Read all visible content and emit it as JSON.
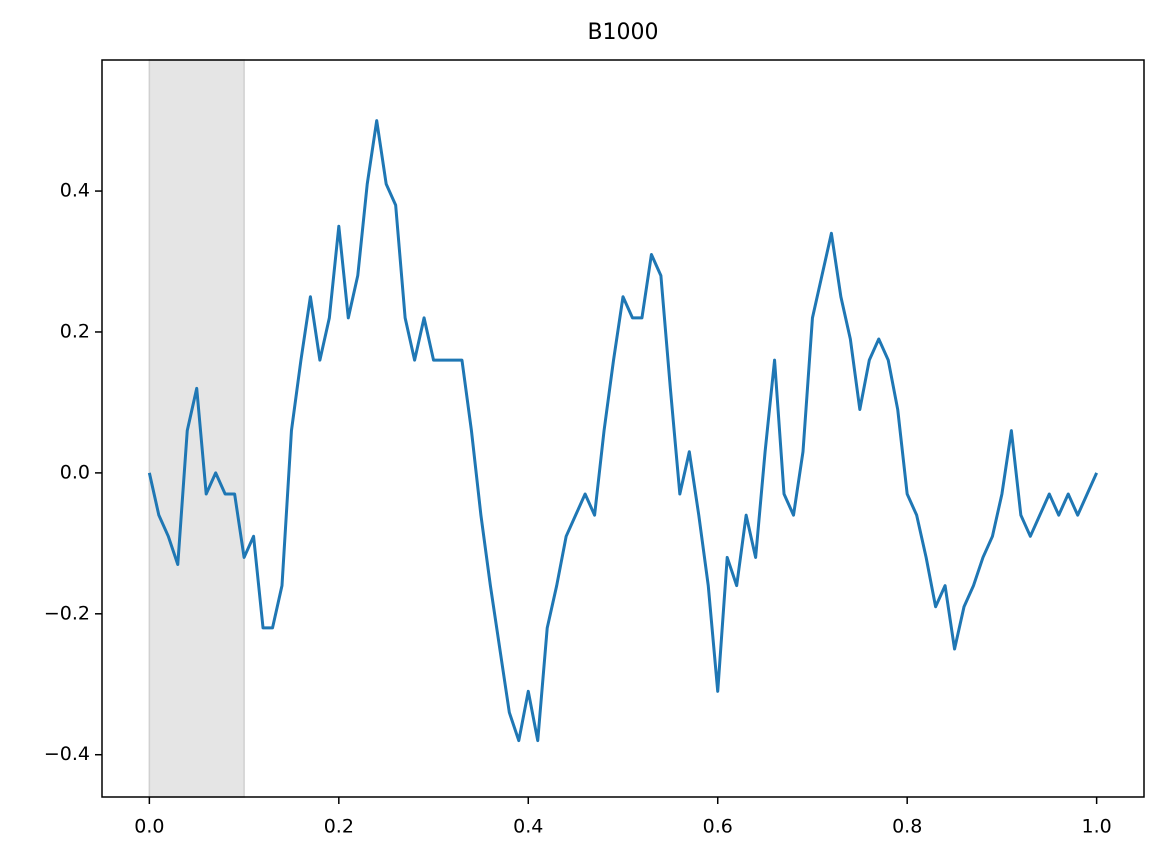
{
  "chart_data": {
    "type": "line",
    "title": "B1000",
    "x": [
      0,
      0.01,
      0.02,
      0.03,
      0.04,
      0.05,
      0.06,
      0.07,
      0.08,
      0.09,
      0.1,
      0.11,
      0.12,
      0.13,
      0.14,
      0.15,
      0.16,
      0.17,
      0.18,
      0.19,
      0.2,
      0.21,
      0.22,
      0.23,
      0.24,
      0.25,
      0.26,
      0.27,
      0.28,
      0.29,
      0.3,
      0.31,
      0.32,
      0.33,
      0.34,
      0.35,
      0.36,
      0.37,
      0.38,
      0.39,
      0.4,
      0.41,
      0.42,
      0.43,
      0.44,
      0.45,
      0.46,
      0.47,
      0.48,
      0.49,
      0.5,
      0.51,
      0.52,
      0.53,
      0.54,
      0.55,
      0.56,
      0.57,
      0.58,
      0.59,
      0.6,
      0.61,
      0.62,
      0.63,
      0.64,
      0.65,
      0.66,
      0.67,
      0.68,
      0.69,
      0.7,
      0.71,
      0.72,
      0.73,
      0.74,
      0.75,
      0.76,
      0.77,
      0.78,
      0.79,
      0.8,
      0.81,
      0.82,
      0.83,
      0.84,
      0.85,
      0.86,
      0.87,
      0.88,
      0.89,
      0.9,
      0.91,
      0.92,
      0.93,
      0.94,
      0.95,
      0.96,
      0.97,
      0.98,
      0.99,
      1.0
    ],
    "series": [
      {
        "color": "#1f77b4",
        "values": [
          0.0,
          -0.06,
          -0.09,
          -0.13,
          0.06,
          0.12,
          -0.03,
          0.0,
          -0.03,
          -0.03,
          -0.12,
          -0.09,
          -0.22,
          -0.22,
          -0.16,
          0.06,
          0.16,
          0.25,
          0.16,
          0.22,
          0.35,
          0.22,
          0.28,
          0.41,
          0.5,
          0.41,
          0.38,
          0.22,
          0.16,
          0.22,
          0.16,
          0.16,
          0.16,
          0.16,
          0.06,
          -0.06,
          -0.16,
          -0.25,
          -0.34,
          -0.38,
          -0.31,
          -0.38,
          -0.22,
          -0.16,
          -0.09,
          -0.06,
          -0.03,
          -0.06,
          0.06,
          0.16,
          0.25,
          0.22,
          0.22,
          0.31,
          0.28,
          0.12,
          -0.03,
          0.03,
          -0.06,
          -0.16,
          -0.31,
          -0.12,
          -0.16,
          -0.06,
          -0.12,
          0.03,
          0.16,
          -0.03,
          -0.06,
          0.03,
          0.22,
          0.28,
          0.34,
          0.25,
          0.19,
          0.09,
          0.16,
          0.19,
          0.16,
          0.09,
          -0.03,
          -0.06,
          -0.12,
          -0.19,
          -0.16,
          -0.25,
          -0.19,
          -0.16,
          -0.12,
          -0.09,
          -0.03,
          0.06,
          -0.06,
          -0.09,
          -0.06,
          -0.03,
          -0.06,
          -0.03,
          -0.06,
          -0.03,
          0.0
        ]
      }
    ],
    "shaded_span": {
      "x": [
        0,
        0.1
      ],
      "color": "#e5e5e5"
    },
    "xlim": [
      -0.05,
      1.05
    ],
    "ylim": [
      -0.46,
      0.586
    ],
    "xticks": [
      {
        "value": 0,
        "label": "0.0"
      },
      0.2,
      0.4,
      0.6,
      0.8,
      {
        "value": 1,
        "label": "1.0"
      }
    ],
    "yticks": [
      {
        "value": -0.4,
        "label": "−0.4"
      },
      {
        "value": -0.2,
        "label": "−0.2"
      },
      {
        "value": 0,
        "label": "0.0"
      },
      0.2,
      0.4
    ]
  }
}
